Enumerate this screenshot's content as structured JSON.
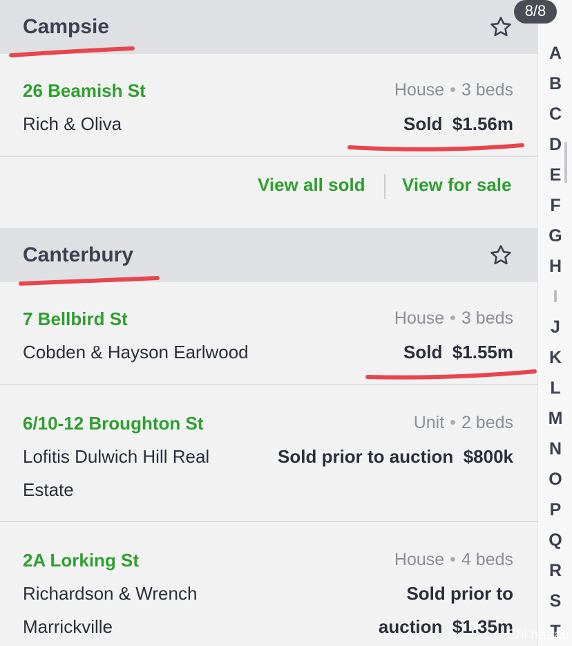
{
  "pager": "8/8",
  "sections": [
    {
      "suburb": "Campsie",
      "listings": [
        {
          "address": "26 Beamish St",
          "type": "House",
          "beds": "3 beds",
          "agent": "Rich & Oliva",
          "sold_label": "Sold",
          "price": "$1.56m"
        }
      ],
      "links": {
        "view_all_sold": "View all sold",
        "view_for_sale": "View for sale"
      }
    },
    {
      "suburb": "Canterbury",
      "listings": [
        {
          "address": "7 Bellbird St",
          "type": "House",
          "beds": "3 beds",
          "agent": "Cobden & Hayson Earlwood",
          "sold_label": "Sold",
          "price": "$1.55m"
        },
        {
          "address": "6/10-12 Broughton St",
          "type": "Unit",
          "beds": "2 beds",
          "agent_line1": "Lofitis Dulwich Hill Real",
          "agent_line2": "Estate",
          "sold_label": "Sold prior to auction",
          "price": "$800k"
        },
        {
          "address": "2A Lorking St",
          "type": "House",
          "beds": "4 beds",
          "agent_line1": "Richardson & Wrench",
          "agent_line2": "Marrickville",
          "sold_line1": "Sold prior to",
          "sold_line2": "auction",
          "price": "$1.35m"
        }
      ]
    }
  ],
  "alphabet": [
    "A",
    "B",
    "C",
    "D",
    "E",
    "F",
    "G",
    "H",
    "I",
    "J",
    "K",
    "L",
    "M",
    "N",
    "O",
    "P",
    "Q",
    "R",
    "S",
    "T"
  ],
  "watermark": "Chi na2au",
  "colors": {
    "accent_green": "#2ea02e",
    "annotation_red": "#e8454d",
    "header_bg": "#dfe0e4"
  }
}
